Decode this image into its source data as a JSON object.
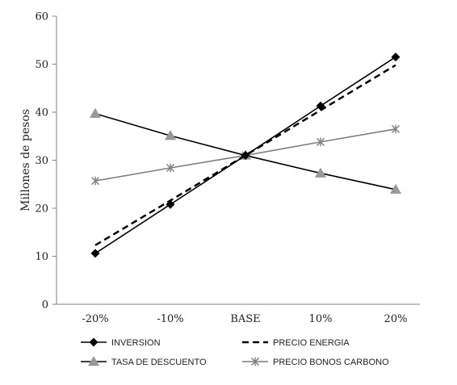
{
  "chart_data": {
    "type": "line",
    "title": "",
    "xlabel": "",
    "ylabel": "Millones de pesos",
    "ylim": [
      0,
      60
    ],
    "yticks": [
      0,
      10,
      20,
      30,
      40,
      50,
      60
    ],
    "grid": false,
    "legend_position": "bottom",
    "categories": [
      "-20%",
      "-10%",
      "BASE",
      "10%",
      "20%"
    ],
    "series": [
      {
        "name": "INVERSION",
        "values": [
          10.6,
          20.8,
          31.0,
          41.3,
          51.5
        ],
        "marker": "diamond",
        "line_style": "solid",
        "color": "#000000",
        "marker_color": "#000000"
      },
      {
        "name": "PRECIO ENERGIA",
        "values": [
          12.3,
          21.6,
          31.0,
          40.4,
          49.8
        ],
        "marker": "none",
        "line_style": "dashed",
        "color": "#000000",
        "marker_color": "#000000"
      },
      {
        "name": "TASA DE DESCUENTO",
        "values": [
          39.7,
          35.1,
          31.0,
          27.3,
          23.9
        ],
        "marker": "triangle",
        "line_style": "solid",
        "color": "#000000",
        "marker_color": "#999999"
      },
      {
        "name": "PRECIO BONOS CARBONO",
        "values": [
          25.7,
          28.4,
          31.0,
          33.8,
          36.5
        ],
        "marker": "star",
        "line_style": "solid",
        "color": "#7f7f7f",
        "marker_color": "#7f7f7f"
      }
    ]
  }
}
